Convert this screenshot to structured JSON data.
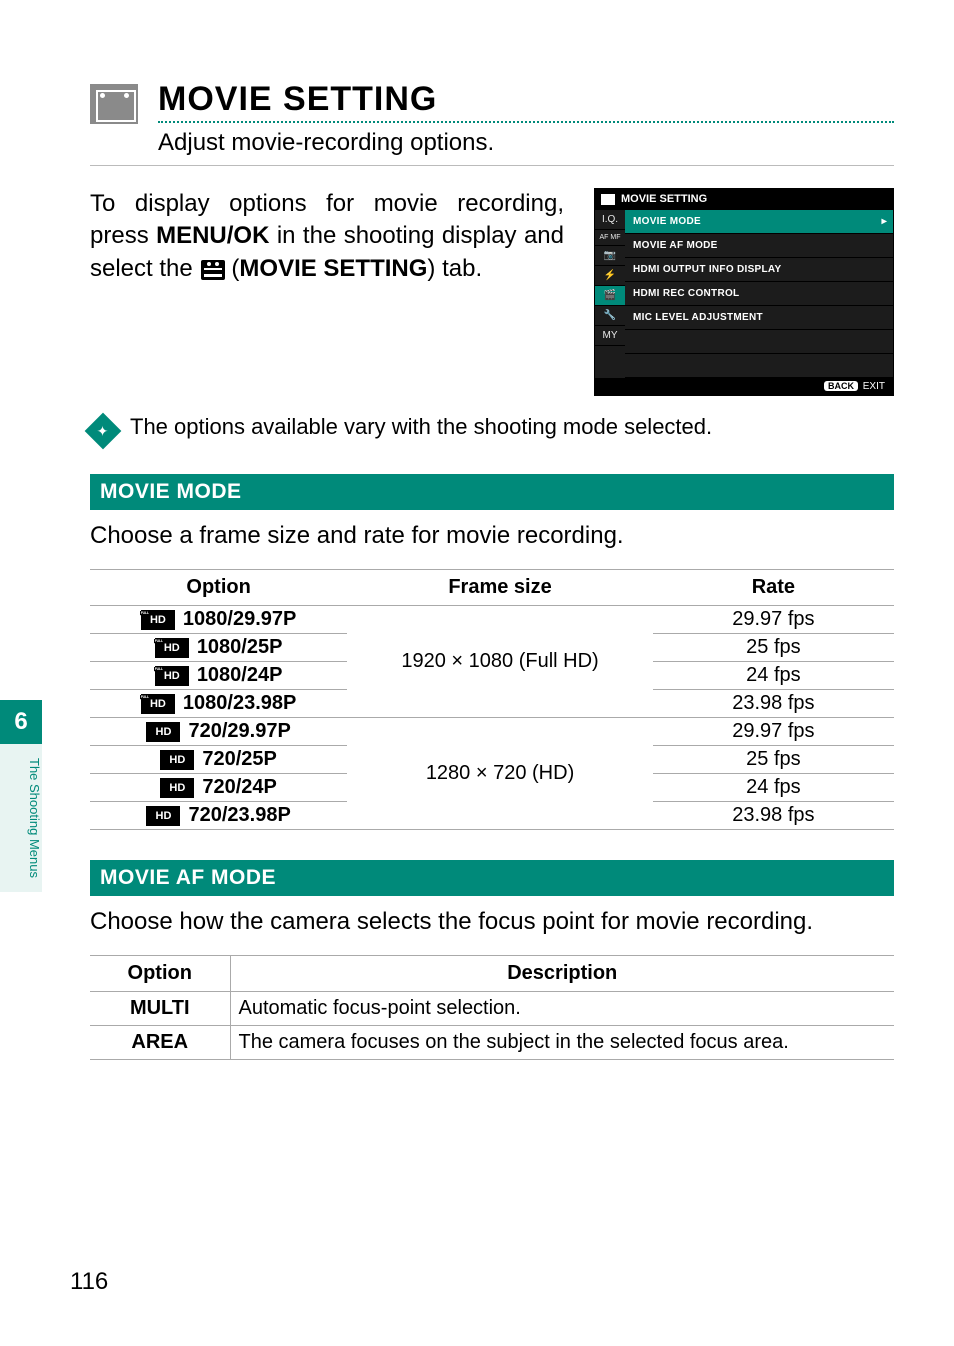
{
  "page": {
    "number": "116",
    "side_tab_number": "6",
    "side_tab_label": "The Shooting Menus"
  },
  "header": {
    "section_title": "MOVIE SETTING",
    "section_subtitle": "Adjust movie-recording options."
  },
  "intro": {
    "text_before_bold1": "To display options for movie recording, press ",
    "bold1": "MENU/OK",
    "text_mid": " in the shooting display and select the ",
    "bold2": "MOVIE SETTING",
    "text_after": ") tab."
  },
  "camera_menu": {
    "title": "MOVIE SETTING",
    "side_icons": [
      "I.Q.",
      "AF MF",
      "📷",
      "⚡",
      "🎬",
      "🔧",
      "MY"
    ],
    "active_side_index": 4,
    "items": [
      {
        "label": "MOVIE MODE",
        "selected": true
      },
      {
        "label": "MOVIE AF MODE",
        "selected": false
      },
      {
        "label": "HDMI OUTPUT INFO DISPLAY",
        "selected": false
      },
      {
        "label": "HDMI REC CONTROL",
        "selected": false
      },
      {
        "label": "MIC LEVEL ADJUSTMENT",
        "selected": false
      }
    ],
    "footer_button": "BACK",
    "footer_text": "EXIT"
  },
  "note": "The options available vary with the shooting mode selected.",
  "sections": [
    {
      "title": "MOVIE MODE",
      "description": "Choose a frame size and rate for movie recording.",
      "table": {
        "headers": [
          "Option",
          "Frame size",
          "Rate"
        ],
        "groups": [
          {
            "frame_size": "1920 × 1080 (Full HD)",
            "rows": [
              {
                "badge_type": "full",
                "badge_text": "HD",
                "option": "1080/29.97P",
                "rate": "29.97 fps"
              },
              {
                "badge_type": "full",
                "badge_text": "HD",
                "option": "1080/25P",
                "rate": "25 fps"
              },
              {
                "badge_type": "full",
                "badge_text": "HD",
                "option": "1080/24P",
                "rate": "24 fps"
              },
              {
                "badge_type": "full",
                "badge_text": "HD",
                "option": "1080/23.98P",
                "rate": "23.98 fps"
              }
            ]
          },
          {
            "frame_size": "1280 × 720 (HD)",
            "rows": [
              {
                "badge_type": "hd",
                "badge_text": "HD",
                "option": "720/29.97P",
                "rate": "29.97 fps"
              },
              {
                "badge_type": "hd",
                "badge_text": "HD",
                "option": "720/25P",
                "rate": "25 fps"
              },
              {
                "badge_type": "hd",
                "badge_text": "HD",
                "option": "720/24P",
                "rate": "24 fps"
              },
              {
                "badge_type": "hd",
                "badge_text": "HD",
                "option": "720/23.98P",
                "rate": "23.98 fps"
              }
            ]
          }
        ]
      }
    },
    {
      "title": "MOVIE AF MODE",
      "description": "Choose how the camera selects the focus point for movie recording.",
      "desc_table": {
        "headers": [
          "Option",
          "Description"
        ],
        "rows": [
          {
            "option": "MULTI",
            "desc": "Automatic focus-point selection."
          },
          {
            "option": "AREA",
            "desc": "The camera focuses on the subject in the selected focus area."
          }
        ]
      }
    }
  ],
  "colors": {
    "accent": "#008a7a",
    "side_label_bg": "#e8f4f2",
    "rule": "#aaaaaa"
  }
}
